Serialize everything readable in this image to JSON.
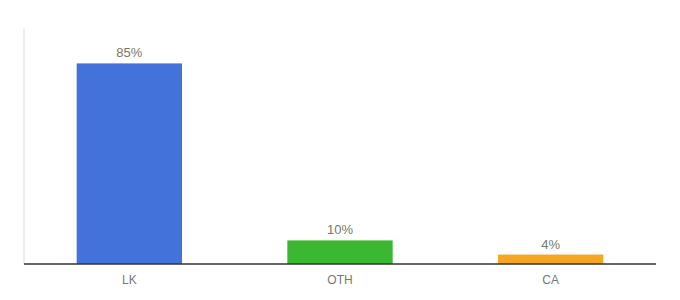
{
  "chart_data": {
    "type": "bar",
    "categories": [
      "LK",
      "OTH",
      "CA"
    ],
    "values": [
      85,
      10,
      4
    ],
    "value_labels": [
      "85%",
      "10%",
      "4%"
    ],
    "colors": [
      "#4472db",
      "#3ab832",
      "#f5a623"
    ],
    "ylim": [
      0,
      100
    ],
    "data_labels": true,
    "tick_labels": "x",
    "grid": false
  }
}
